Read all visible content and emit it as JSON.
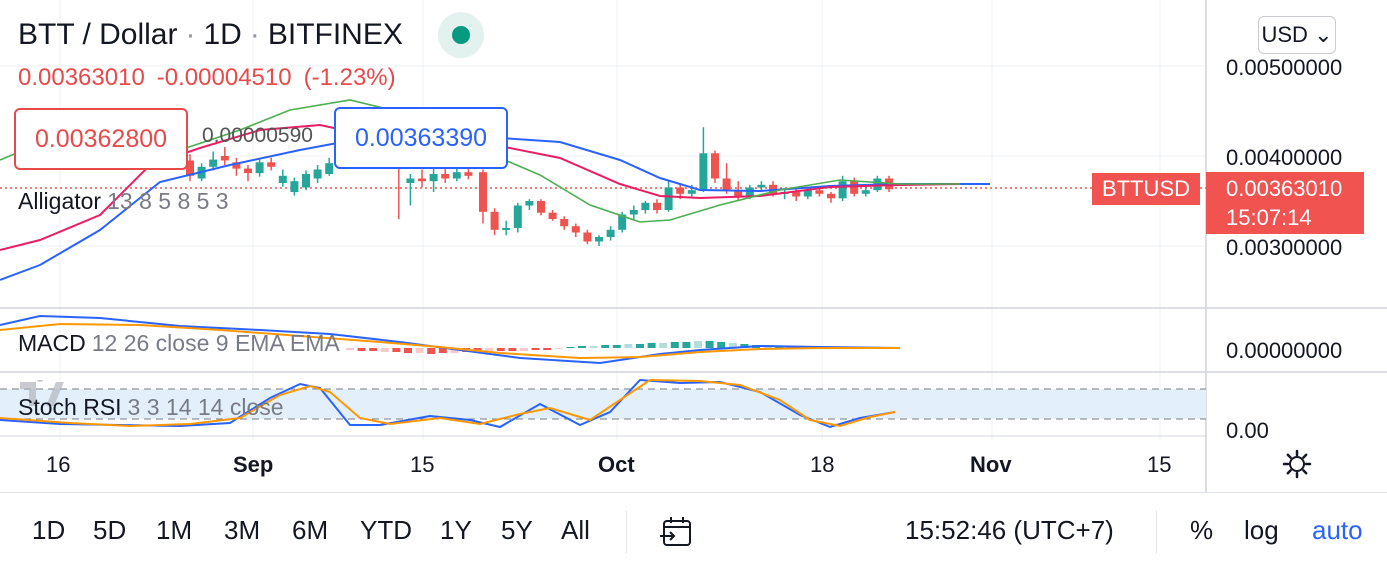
{
  "header": {
    "symbol": "BTT / Dollar",
    "interval": "1D",
    "exchange": "BITFINEX"
  },
  "ohlc": {
    "price": "0.00363010",
    "change": "-0.00004510",
    "change_pct": "(-1.23%)"
  },
  "trade": {
    "sell": "0.00362800",
    "spread": "0.00000590",
    "buy": "0.00363390"
  },
  "indicators": {
    "alligator": {
      "name": "Alligator",
      "params": "13 8 5 8 5 3"
    },
    "macd": {
      "name": "MACD",
      "params": "12 26 close 9 EMA EMA"
    },
    "stoch": {
      "name": "Stoch RSI",
      "params": "3 3 14 14 close"
    }
  },
  "currency": "USD",
  "price_axis": [
    "0.00500000",
    "0.00400000",
    "0.00300000"
  ],
  "macd_axis": "0.00000000",
  "stoch_axis": "0.00",
  "symbol_tag": "BTTUSD",
  "price_tag": {
    "price": "0.00363010",
    "countdown": "15:07:14"
  },
  "time_axis": [
    {
      "label": "16",
      "bold": false
    },
    {
      "label": "Sep",
      "bold": true
    },
    {
      "label": "15",
      "bold": false
    },
    {
      "label": "Oct",
      "bold": true
    },
    {
      "label": "18",
      "bold": false
    },
    {
      "label": "Nov",
      "bold": true
    },
    {
      "label": "15",
      "bold": false
    }
  ],
  "toolbar": {
    "ranges": [
      "1D",
      "5D",
      "1M",
      "3M",
      "6M",
      "YTD",
      "1Y",
      "5Y",
      "All"
    ],
    "clock": "15:52:46 (UTC+7)",
    "percent": "%",
    "log": "log",
    "auto": "auto"
  },
  "colors": {
    "up": "#26a69a",
    "down": "#ef5350",
    "blue": "#2962ff",
    "accent": "#2962ff"
  },
  "chart_data": {
    "type": "candlestick",
    "candles_after_sep15": [
      {
        "o": 0.00382,
        "c": 0.00338,
        "h": 0.00385,
        "l": 0.00325
      },
      {
        "o": 0.00338,
        "c": 0.00318,
        "h": 0.00342,
        "l": 0.00312
      },
      {
        "o": 0.00318,
        "c": 0.0032,
        "h": 0.00328,
        "l": 0.00312
      },
      {
        "o": 0.0032,
        "c": 0.00345,
        "h": 0.00348,
        "l": 0.00315
      },
      {
        "o": 0.00345,
        "c": 0.0035,
        "h": 0.00352,
        "l": 0.0034
      },
      {
        "o": 0.0035,
        "c": 0.00337,
        "h": 0.00352,
        "l": 0.00334
      },
      {
        "o": 0.00337,
        "c": 0.0033,
        "h": 0.0034,
        "l": 0.00328
      },
      {
        "o": 0.0033,
        "c": 0.00322,
        "h": 0.00333,
        "l": 0.00318
      },
      {
        "o": 0.00322,
        "c": 0.00315,
        "h": 0.00325,
        "l": 0.0031
      },
      {
        "o": 0.00315,
        "c": 0.00305,
        "h": 0.00318,
        "l": 0.00302
      },
      {
        "o": 0.00305,
        "c": 0.0031,
        "h": 0.00312,
        "l": 0.003
      },
      {
        "o": 0.0031,
        "c": 0.00318,
        "h": 0.00322,
        "l": 0.00306
      },
      {
        "o": 0.00318,
        "c": 0.00335,
        "h": 0.00338,
        "l": 0.00315
      },
      {
        "o": 0.00335,
        "c": 0.0034,
        "h": 0.00345,
        "l": 0.0033
      },
      {
        "o": 0.0034,
        "c": 0.00348,
        "h": 0.0035,
        "l": 0.00336
      },
      {
        "o": 0.00348,
        "c": 0.0034,
        "h": 0.00352,
        "l": 0.00336
      },
      {
        "o": 0.0034,
        "c": 0.00365,
        "h": 0.00372,
        "l": 0.00338
      },
      {
        "o": 0.00365,
        "c": 0.00358,
        "h": 0.0037,
        "l": 0.00352
      },
      {
        "o": 0.00358,
        "c": 0.00362,
        "h": 0.00368,
        "l": 0.00355
      },
      {
        "o": 0.00362,
        "c": 0.00403,
        "h": 0.00432,
        "l": 0.0036
      },
      {
        "o": 0.00403,
        "c": 0.00375,
        "h": 0.00406,
        "l": 0.0037
      },
      {
        "o": 0.00375,
        "c": 0.00362,
        "h": 0.00392,
        "l": 0.00358
      },
      {
        "o": 0.00362,
        "c": 0.00355,
        "h": 0.00372,
        "l": 0.0035
      },
      {
        "o": 0.00355,
        "c": 0.00365,
        "h": 0.00368,
        "l": 0.00352
      },
      {
        "o": 0.00365,
        "c": 0.00368,
        "h": 0.00372,
        "l": 0.0036
      },
      {
        "o": 0.00368,
        "c": 0.00358,
        "h": 0.00372,
        "l": 0.00355
      },
      {
        "o": 0.00358,
        "c": 0.0036,
        "h": 0.00364,
        "l": 0.00352
      },
      {
        "o": 0.0036,
        "c": 0.00355,
        "h": 0.00363,
        "l": 0.0035
      },
      {
        "o": 0.00355,
        "c": 0.00362,
        "h": 0.00365,
        "l": 0.00352
      },
      {
        "o": 0.00362,
        "c": 0.00358,
        "h": 0.00366,
        "l": 0.00355
      },
      {
        "o": 0.00358,
        "c": 0.00353,
        "h": 0.0036,
        "l": 0.00348
      },
      {
        "o": 0.00353,
        "c": 0.00372,
        "h": 0.00378,
        "l": 0.0035
      },
      {
        "o": 0.00372,
        "c": 0.00358,
        "h": 0.00376,
        "l": 0.00355
      },
      {
        "o": 0.00358,
        "c": 0.00362,
        "h": 0.00368,
        "l": 0.00355
      },
      {
        "o": 0.00362,
        "c": 0.00375,
        "h": 0.00378,
        "l": 0.0036
      },
      {
        "o": 0.00375,
        "c": 0.00363,
        "h": 0.00378,
        "l": 0.0036
      }
    ],
    "ylim": [
      0.0026,
      0.0052
    ]
  }
}
